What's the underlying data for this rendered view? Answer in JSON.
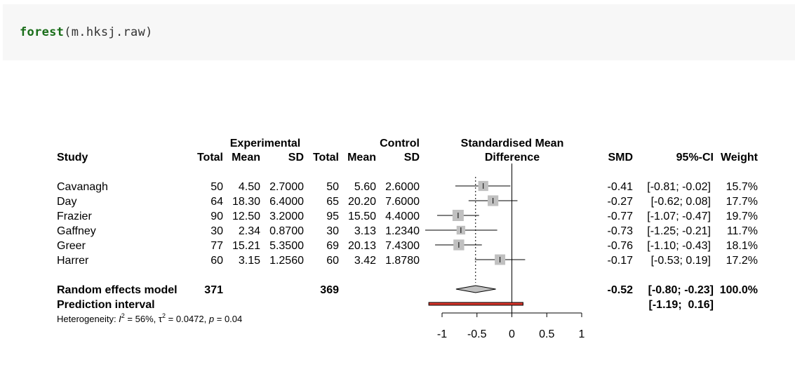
{
  "code": {
    "function": "forest",
    "args": "(m.hksj.raw)"
  },
  "header": {
    "study": "Study",
    "experimental": "Experimental",
    "control": "Control",
    "smd_title_1": "Standardised Mean",
    "smd_title_2": "Difference",
    "total": "Total",
    "mean": "Mean",
    "sd": "SD",
    "smd": "SMD",
    "ci": "95%-CI",
    "weight": "Weight"
  },
  "studies": [
    {
      "name": "Cavanagh",
      "e_total": "50",
      "e_mean": "4.50",
      "e_sd": "2.7000",
      "c_total": "50",
      "c_mean": "5.60",
      "c_sd": "2.6000",
      "smd": "-0.41",
      "ci": "[-0.81; -0.02]",
      "weight": "15.7%"
    },
    {
      "name": "Day",
      "e_total": "64",
      "e_mean": "18.30",
      "e_sd": "6.4000",
      "c_total": "65",
      "c_mean": "20.20",
      "c_sd": "7.6000",
      "smd": "-0.27",
      "ci": "[-0.62;  0.08]",
      "weight": "17.7%"
    },
    {
      "name": "Frazier",
      "e_total": "90",
      "e_mean": "12.50",
      "e_sd": "3.2000",
      "c_total": "95",
      "c_mean": "15.50",
      "c_sd": "4.4000",
      "smd": "-0.77",
      "ci": "[-1.07; -0.47]",
      "weight": "19.7%"
    },
    {
      "name": "Gaffney",
      "e_total": "30",
      "e_mean": "2.34",
      "e_sd": "0.8700",
      "c_total": "30",
      "c_mean": "3.13",
      "c_sd": "1.2340",
      "smd": "-0.73",
      "ci": "[-1.25; -0.21]",
      "weight": "11.7%"
    },
    {
      "name": "Greer",
      "e_total": "77",
      "e_mean": "15.21",
      "e_sd": "5.3500",
      "c_total": "69",
      "c_mean": "20.13",
      "c_sd": "7.4300",
      "smd": "-0.76",
      "ci": "[-1.10; -0.43]",
      "weight": "18.1%"
    },
    {
      "name": "Harrer",
      "e_total": "60",
      "e_mean": "3.15",
      "e_sd": "1.2560",
      "c_total": "60",
      "c_mean": "3.42",
      "c_sd": "1.8780",
      "smd": "-0.17",
      "ci": "[-0.53;  0.19]",
      "weight": "17.2%"
    }
  ],
  "random_effects": {
    "label": "Random effects model",
    "e_total": "371",
    "c_total": "369",
    "smd": "-0.52",
    "ci": "[-0.80; -0.23]",
    "weight": "100.0%"
  },
  "prediction": {
    "label": "Prediction interval",
    "ci": "[-1.19;  0.16]"
  },
  "heterogeneity": {
    "prefix": "Heterogeneity: ",
    "i2": "56%",
    "tau2": "0.0472",
    "p": "0.04"
  },
  "chart_data": {
    "type": "forest",
    "xlim": [
      -1,
      1
    ],
    "xticks": [
      -1,
      -0.5,
      0,
      0.5,
      1
    ],
    "xtick_labels": [
      "-1",
      "-0.5",
      "0",
      "0.5",
      "1"
    ],
    "studies": [
      {
        "name": "Cavanagh",
        "smd": -0.41,
        "lower": -0.81,
        "upper": -0.02,
        "weight": 15.7
      },
      {
        "name": "Day",
        "smd": -0.27,
        "lower": -0.62,
        "upper": 0.08,
        "weight": 17.7
      },
      {
        "name": "Frazier",
        "smd": -0.77,
        "lower": -1.07,
        "upper": -0.47,
        "weight": 19.7
      },
      {
        "name": "Gaffney",
        "smd": -0.73,
        "lower": -1.25,
        "upper": -0.21,
        "weight": 11.7
      },
      {
        "name": "Greer",
        "smd": -0.76,
        "lower": -1.1,
        "upper": -0.43,
        "weight": 18.1
      },
      {
        "name": "Harrer",
        "smd": -0.17,
        "lower": -0.53,
        "upper": 0.19,
        "weight": 17.2
      }
    ],
    "pooled": {
      "smd": -0.52,
      "lower": -0.8,
      "upper": -0.23
    },
    "prediction_interval": {
      "lower": -1.19,
      "upper": 0.16
    },
    "null_line": 0,
    "colors": {
      "square": "#c0c0c0",
      "diamond": "#c0c0c0",
      "prediction_fill": "#d8352a"
    }
  }
}
